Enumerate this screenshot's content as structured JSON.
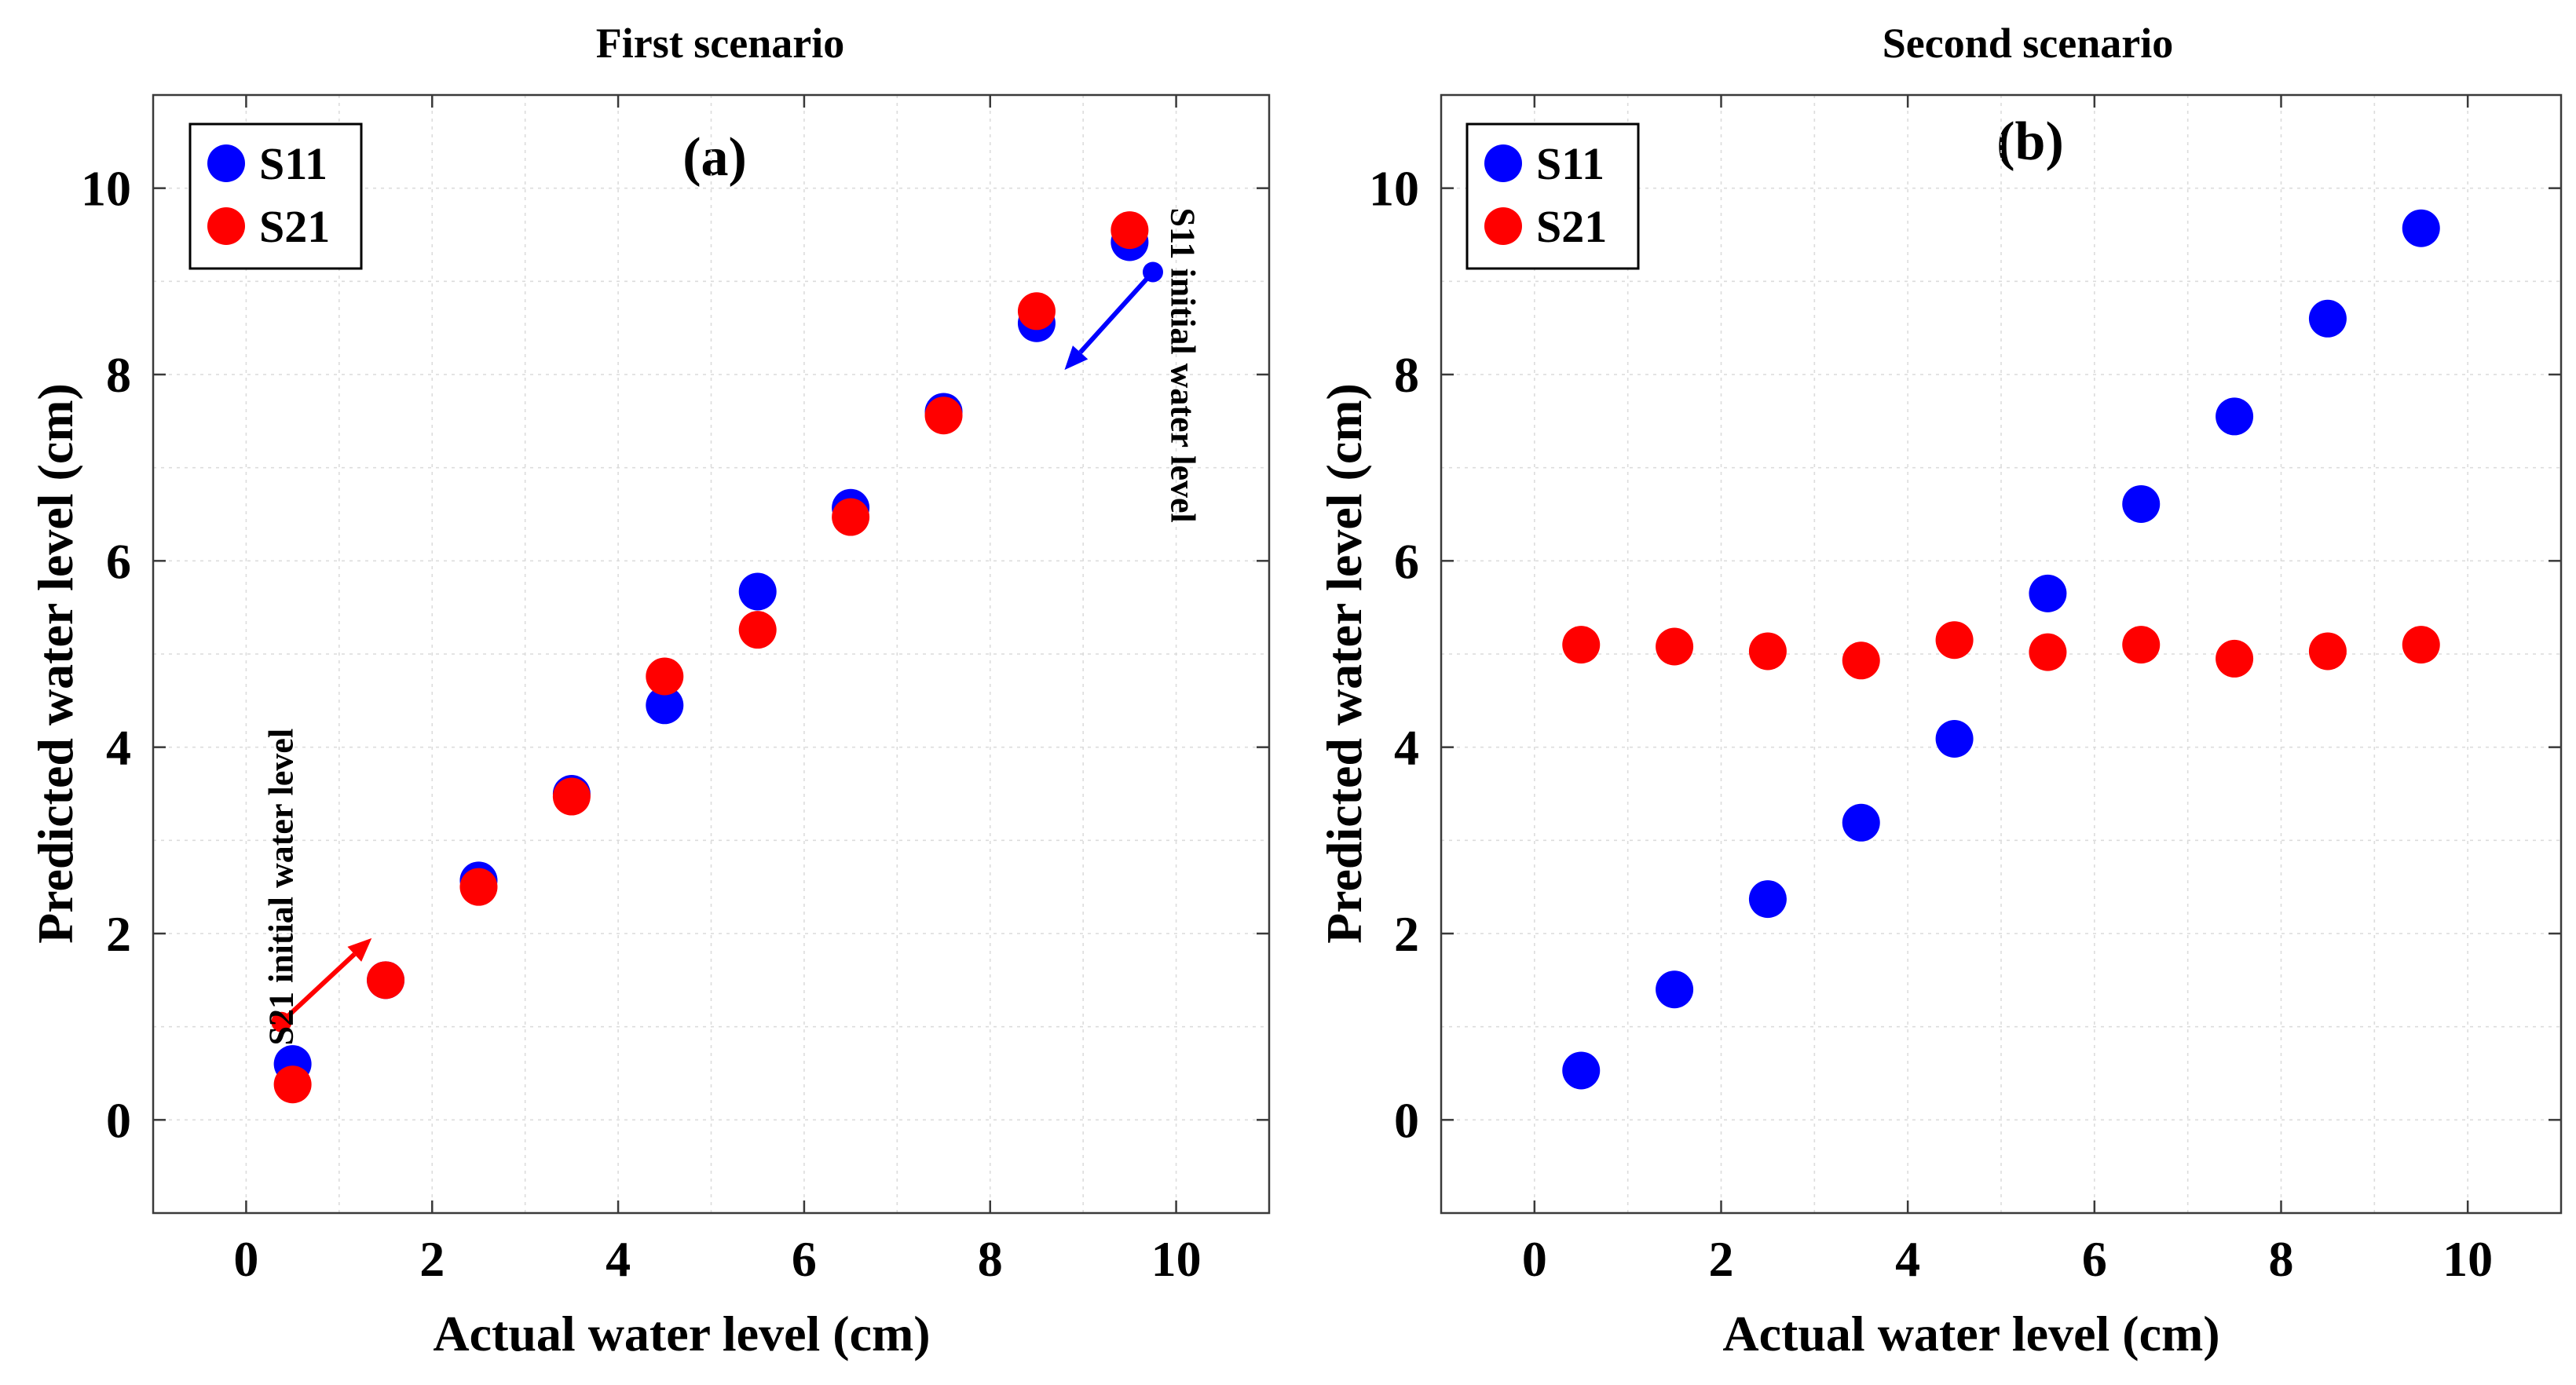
{
  "chart_data": [
    {
      "type": "scatter",
      "panel_label": "(a)",
      "title": "First scenario",
      "xlabel": "Actual water level (cm)",
      "ylabel": "Predicted water level (cm)",
      "xlim": [
        -1,
        11
      ],
      "ylim": [
        -1,
        11
      ],
      "xticks": [
        0,
        2,
        4,
        6,
        8,
        10
      ],
      "yticks": [
        0,
        2,
        4,
        6,
        8,
        10
      ],
      "grid": true,
      "legend_position": "top-left",
      "series": [
        {
          "name": "S11",
          "color": "#0000ff",
          "x": [
            0.5,
            1.5,
            2.5,
            3.5,
            4.5,
            5.5,
            6.5,
            7.5,
            8.5,
            9.5
          ],
          "y": [
            0.6,
            1.5,
            2.57,
            3.5,
            4.45,
            5.67,
            6.57,
            7.6,
            8.55,
            9.42
          ]
        },
        {
          "name": "S21",
          "color": "#ff0000",
          "x": [
            0.5,
            1.5,
            2.5,
            3.5,
            4.5,
            5.5,
            6.5,
            7.5,
            8.5,
            9.5
          ],
          "y": [
            0.38,
            1.5,
            2.5,
            3.47,
            4.76,
            5.26,
            6.47,
            7.56,
            8.68,
            9.55
          ]
        }
      ],
      "annotations": [
        {
          "text": "S21 initial water level",
          "color": "#ff0000",
          "from": [
            0.38,
            1.05
          ],
          "to": [
            1.35,
            1.95
          ],
          "text_at": [
            0.5,
            2.5
          ],
          "rotation": -90
        },
        {
          "text": "S11 initial water level",
          "color": "#0000ff",
          "from": [
            9.75,
            9.1
          ],
          "to": [
            8.8,
            8.05
          ],
          "text_at": [
            9.95,
            8.1
          ],
          "rotation": 90
        }
      ]
    },
    {
      "type": "scatter",
      "panel_label": "(b)",
      "title": "Second scenario",
      "xlabel": "Actual water level (cm)",
      "ylabel": "Predicted water level (cm)",
      "xlim": [
        -1,
        11
      ],
      "ylim": [
        -1,
        11
      ],
      "xticks": [
        0,
        2,
        4,
        6,
        8,
        10
      ],
      "yticks": [
        0,
        2,
        4,
        6,
        8,
        10
      ],
      "grid": true,
      "legend_position": "top-left",
      "series": [
        {
          "name": "S11",
          "color": "#0000ff",
          "x": [
            0.5,
            1.5,
            2.5,
            3.5,
            4.5,
            5.5,
            6.5,
            7.5,
            8.5,
            9.5
          ],
          "y": [
            0.53,
            1.4,
            2.37,
            3.19,
            4.09,
            5.65,
            6.61,
            7.55,
            8.6,
            9.57
          ]
        },
        {
          "name": "S21",
          "color": "#ff0000",
          "x": [
            0.5,
            1.5,
            2.5,
            3.5,
            4.5,
            5.5,
            6.5,
            7.5,
            8.5,
            9.5
          ],
          "y": [
            5.1,
            5.08,
            5.03,
            4.93,
            5.15,
            5.02,
            5.1,
            4.95,
            5.03,
            5.1
          ]
        }
      ],
      "annotations": []
    }
  ]
}
